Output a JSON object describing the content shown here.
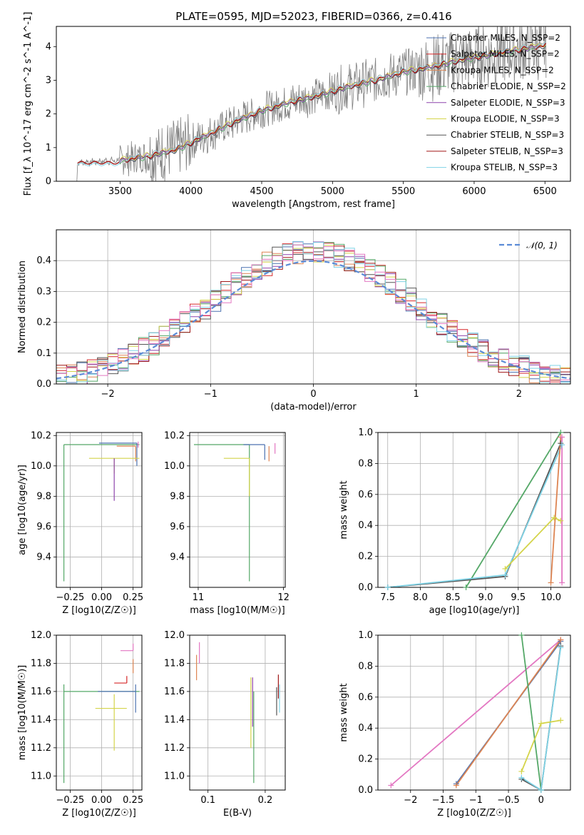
{
  "colors": {
    "Chabrier MILES": "#4c72b0",
    "Salpeter MILES": "#d62728",
    "Kroupa MILES": "#dd8452",
    "Chabrier ELODIE": "#55a868",
    "Salpeter ELODIE": "#8e44ad",
    "Kroupa ELODIE": "#d4d44a",
    "Chabrier STELIB": "#555555",
    "Salpeter STELIB": "#a01818",
    "Kroupa STELIB": "#7fd3e6",
    "data": "#808080",
    "gauss": "#5b8bd6",
    "pink": "#e377c2"
  },
  "chart_data": [
    {
      "id": "spectrum",
      "type": "line",
      "title": "PLATE=0595, MJD=52023, FIBERID=0366, z=0.416",
      "xlabel": "wavelength [Angstrom, rest frame]",
      "ylabel": "Flux [f_λ 10^-17 erg cm^-2 s^-1 A^-1]",
      "xlim": [
        3050,
        6680
      ],
      "ylim": [
        0,
        4.6
      ],
      "xticks": [
        3500,
        4000,
        4500,
        5000,
        5500,
        6000,
        6500
      ],
      "yticks": [
        0,
        1,
        2,
        3,
        4
      ],
      "legend_position": "top-right",
      "legend": [
        {
          "label": "Chabrier MILES, N_SSP=2",
          "color": "#4c72b0"
        },
        {
          "label": "Salpeter MILES, N_SSP=2",
          "color": "#d62728"
        },
        {
          "label": "Kroupa MILES, N_SSP=2",
          "color": "#dd8452"
        },
        {
          "label": "Chabrier ELODIE, N_SSP=2",
          "color": "#55a868"
        },
        {
          "label": "Salpeter ELODIE, N_SSP=3",
          "color": "#8e44ad"
        },
        {
          "label": "Kroupa ELODIE, N_SSP=3",
          "color": "#d4d44a"
        },
        {
          "label": "Chabrier STELIB, N_SSP=3",
          "color": "#555555"
        },
        {
          "label": "Salpeter STELIB, N_SSP=3",
          "color": "#a01818"
        },
        {
          "label": "Kroupa STELIB, N_SSP=3",
          "color": "#7fd3e6"
        }
      ],
      "continuum": {
        "x": [
          3200,
          3300,
          3500,
          3700,
          3900,
          4100,
          4300,
          4500,
          4700,
          4900,
          5100,
          5300,
          5500,
          5700,
          5900,
          6100,
          6300,
          6500
        ],
        "y": [
          0.55,
          0.58,
          0.62,
          0.75,
          0.95,
          1.35,
          1.75,
          2.1,
          2.35,
          2.55,
          2.8,
          3.0,
          3.25,
          3.4,
          3.6,
          3.75,
          3.9,
          4.05
        ]
      }
    },
    {
      "id": "residuals",
      "type": "line",
      "xlabel": "(data-model)/error",
      "ylabel": "Normed distribution",
      "xlim": [
        -2.5,
        2.5
      ],
      "ylim": [
        0,
        0.5
      ],
      "xticks": [
        -2,
        -1,
        0,
        1,
        2
      ],
      "yticks": [
        0.0,
        0.1,
        0.2,
        0.3,
        0.4
      ],
      "legend": [
        {
          "label": "𝒩(0, 1)",
          "color": "#5b8bd6",
          "style": "dashed"
        }
      ],
      "legend_position": "top-right"
    },
    {
      "id": "age_vs_Z",
      "type": "scatter",
      "xlabel": "Z [log10(Z/Z☉)]",
      "ylabel": "age [log10(age/yr)]",
      "xlim": [
        -0.36,
        0.32
      ],
      "ylim": [
        9.2,
        10.22
      ],
      "xticks": [
        -0.25,
        0.0,
        0.25
      ],
      "yticks": [
        9.4,
        9.6,
        9.8,
        10.0,
        10.2
      ],
      "points": [
        {
          "x": -0.3,
          "y": 10.14,
          "xerr": [
            0.0,
            0.6
          ],
          "yerr": [
            0.9,
            0.0
          ],
          "color": "#55a868"
        },
        {
          "x": 0.28,
          "y": 10.15,
          "xerr": [
            0.3,
            0.0
          ],
          "yerr": [
            0.15,
            0.0
          ],
          "color": "#4c72b0"
        },
        {
          "x": 0.27,
          "y": 10.13,
          "xerr": [
            0.15,
            0.0
          ],
          "yerr": [
            0.1,
            0.0
          ],
          "color": "#dd8452"
        },
        {
          "x": 0.1,
          "y": 10.05,
          "xerr": [
            0.2,
            0.2
          ],
          "yerr": [
            0.1,
            0.0
          ],
          "color": "#d4d44a"
        },
        {
          "x": 0.1,
          "y": 10.05,
          "xerr": [
            0.0,
            0.0
          ],
          "yerr": [
            0.28,
            0.0
          ],
          "color": "#8e44ad"
        },
        {
          "x": 0.29,
          "y": 10.12,
          "xerr": [
            0.0,
            0.0
          ],
          "yerr": [
            0.0,
            0.04
          ],
          "color": "#e377c2"
        }
      ]
    },
    {
      "id": "age_vs_mass",
      "type": "scatter",
      "xlabel": "mass [log10(M/M☉)]",
      "ylabel": "",
      "xlim": [
        10.9,
        12.02
      ],
      "ylim": [
        9.2,
        10.22
      ],
      "xticks": [
        11,
        12
      ],
      "yticks": [
        9.4,
        9.6,
        9.8,
        10.0,
        10.2
      ],
      "points": [
        {
          "x": 11.6,
          "y": 10.14,
          "xerr": [
            0.65,
            0.0
          ],
          "yerr": [
            0.9,
            0.0
          ],
          "color": "#55a868"
        },
        {
          "x": 11.6,
          "y": 10.05,
          "xerr": [
            0.3,
            0.0
          ],
          "yerr": [
            0.25,
            0.0
          ],
          "color": "#d4d44a"
        },
        {
          "x": 11.78,
          "y": 10.14,
          "xerr": [
            0.25,
            0.0
          ],
          "yerr": [
            0.1,
            0.0
          ],
          "color": "#4c72b0"
        },
        {
          "x": 11.83,
          "y": 10.13,
          "xerr": [
            0.0,
            0.0
          ],
          "yerr": [
            0.1,
            0.0
          ],
          "color": "#dd8452"
        },
        {
          "x": 11.9,
          "y": 10.15,
          "xerr": [
            0.0,
            0.0
          ],
          "yerr": [
            0.07,
            0.0
          ],
          "color": "#e377c2"
        }
      ]
    },
    {
      "id": "weight_vs_age",
      "type": "line",
      "xlabel": "age [log10(age/yr)]",
      "ylabel": "mass weight",
      "xlim": [
        7.35,
        10.3
      ],
      "ylim": [
        0,
        1.0
      ],
      "xticks": [
        7.5,
        8.0,
        8.5,
        9.0,
        9.5,
        10.0
      ],
      "yticks": [
        0.0,
        0.2,
        0.4,
        0.6,
        0.8,
        1.0
      ],
      "series": [
        {
          "color": "#55a868",
          "x": [
            8.7,
            10.15
          ],
          "y": [
            0.0,
            1.0
          ]
        },
        {
          "color": "#555555",
          "x": [
            7.5,
            9.3,
            10.15
          ],
          "y": [
            0.0,
            0.07,
            0.93
          ]
        },
        {
          "color": "#7fd3e6",
          "x": [
            7.5,
            9.3,
            10.17
          ],
          "y": [
            0.0,
            0.08,
            0.92
          ]
        },
        {
          "color": "#d4d44a",
          "x": [
            9.3,
            10.05,
            10.15
          ],
          "y": [
            0.12,
            0.45,
            0.43
          ]
        },
        {
          "color": "#dd8452",
          "x": [
            10.0,
            10.15
          ],
          "y": [
            0.03,
            0.97
          ]
        },
        {
          "color": "#e377c2",
          "x": [
            10.17,
            10.17
          ],
          "y": [
            0.03,
            0.97
          ]
        }
      ]
    },
    {
      "id": "mass_vs_Z",
      "type": "scatter",
      "xlabel": "Z [log10(Z/Z☉)]",
      "ylabel": "mass [log10(M/M☉)]",
      "xlim": [
        -0.36,
        0.32
      ],
      "ylim": [
        10.9,
        12.0
      ],
      "xticks": [
        -0.25,
        0.0,
        0.25
      ],
      "yticks": [
        11.0,
        11.2,
        11.4,
        11.6,
        11.8,
        12.0
      ],
      "points": [
        {
          "x": -0.3,
          "y": 11.6,
          "xerr": [
            0.0,
            0.6
          ],
          "yerr": [
            0.65,
            0.05
          ],
          "color": "#55a868"
        },
        {
          "x": 0.27,
          "y": 11.6,
          "xerr": [
            0.3,
            0.0
          ],
          "yerr": [
            0.15,
            0.05
          ],
          "color": "#4c72b0"
        },
        {
          "x": 0.1,
          "y": 11.48,
          "xerr": [
            0.15,
            0.1
          ],
          "yerr": [
            0.3,
            0.1
          ],
          "color": "#d4d44a"
        },
        {
          "x": 0.2,
          "y": 11.66,
          "xerr": [
            0.1,
            0.0
          ],
          "yerr": [
            0.0,
            0.05
          ],
          "color": "#d62728"
        },
        {
          "x": 0.25,
          "y": 11.78,
          "xerr": [
            0.0,
            0.0
          ],
          "yerr": [
            0.05,
            0.05
          ],
          "color": "#dd8452"
        },
        {
          "x": 0.25,
          "y": 11.89,
          "xerr": [
            0.1,
            0.0
          ],
          "yerr": [
            0.0,
            0.05
          ],
          "color": "#e377c2"
        }
      ]
    },
    {
      "id": "mass_vs_ebv",
      "type": "scatter",
      "xlabel": "E(B-V)",
      "ylabel": "",
      "xlim": [
        0.068,
        0.235
      ],
      "ylim": [
        10.9,
        12.0
      ],
      "xticks": [
        0.1,
        0.2
      ],
      "yticks": [
        11.0,
        11.2,
        11.4,
        11.6,
        11.8,
        12.0
      ],
      "points": [
        {
          "x": 0.08,
          "y": 11.8,
          "xerr": [
            0,
            0
          ],
          "yerr": [
            0.12,
            0.06
          ],
          "color": "#dd8452"
        },
        {
          "x": 0.085,
          "y": 11.85,
          "xerr": [
            0,
            0
          ],
          "yerr": [
            0.05,
            0.1
          ],
          "color": "#e377c2"
        },
        {
          "x": 0.175,
          "y": 11.5,
          "xerr": [
            0,
            0
          ],
          "yerr": [
            0.3,
            0.2
          ],
          "color": "#d4d44a"
        },
        {
          "x": 0.18,
          "y": 11.5,
          "xerr": [
            0,
            0
          ],
          "yerr": [
            0.55,
            0.1
          ],
          "color": "#55a868"
        },
        {
          "x": 0.178,
          "y": 11.65,
          "xerr": [
            0,
            0
          ],
          "yerr": [
            0.3,
            0.05
          ],
          "color": "#8e44ad"
        },
        {
          "x": 0.22,
          "y": 11.53,
          "xerr": [
            0,
            0
          ],
          "yerr": [
            0.1,
            0.1
          ],
          "color": "#555555"
        },
        {
          "x": 0.223,
          "y": 11.6,
          "xerr": [
            0,
            0
          ],
          "yerr": [
            0.05,
            0.12
          ],
          "color": "#a01818"
        },
        {
          "x": 0.225,
          "y": 11.55,
          "xerr": [
            0,
            0
          ],
          "yerr": [
            0.1,
            0.1
          ],
          "color": "#7fd3e6"
        }
      ]
    },
    {
      "id": "weight_vs_Z",
      "type": "line",
      "xlabel": "Z [log10(Z/Z☉)]",
      "ylabel": "mass weight",
      "xlim": [
        -2.5,
        0.45
      ],
      "ylim": [
        0,
        1.0
      ],
      "xticks": [
        -2.0,
        -1.5,
        -1.0,
        -0.5,
        0.0
      ],
      "yticks": [
        0.0,
        0.2,
        0.4,
        0.6,
        0.8,
        1.0
      ],
      "series": [
        {
          "color": "#e377c2",
          "x": [
            -2.3,
            0.3
          ],
          "y": [
            0.03,
            0.97
          ]
        },
        {
          "color": "#4c72b0",
          "x": [
            -1.3,
            0.3
          ],
          "y": [
            0.04,
            0.96
          ]
        },
        {
          "color": "#dd8452",
          "x": [
            -1.3,
            0.3
          ],
          "y": [
            0.03,
            0.97
          ]
        },
        {
          "color": "#55a868",
          "x": [
            -0.3,
            0.0
          ],
          "y": [
            1.0,
            0.0
          ]
        },
        {
          "color": "#555555",
          "x": [
            -0.3,
            0.0,
            0.3
          ],
          "y": [
            0.07,
            0.0,
            0.93
          ]
        },
        {
          "color": "#7fd3e6",
          "x": [
            -0.3,
            0.0,
            0.3
          ],
          "y": [
            0.08,
            0.0,
            0.92
          ]
        },
        {
          "color": "#d4d44a",
          "x": [
            -0.3,
            0.0,
            0.3
          ],
          "y": [
            0.12,
            0.43,
            0.45
          ]
        }
      ]
    }
  ]
}
